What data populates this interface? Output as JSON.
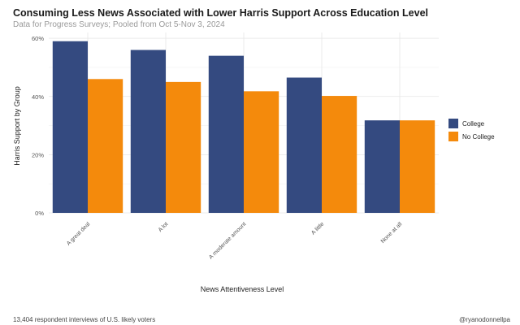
{
  "header": {
    "title": "Consuming Less News Associated with Lower Harris Support Across Education Level",
    "subtitle": "Data for Progress Surveys; Pooled from Oct 5-Nov 3, 2024"
  },
  "footer": {
    "left": "13,404 respondent interviews of U.S. likely voters",
    "right": "@ryanodonnellpa"
  },
  "colors": {
    "college": "#344a80",
    "no_college": "#f48a0c",
    "grid": "#e6e6e6"
  },
  "chart_data": {
    "type": "bar",
    "title": "Consuming Less News Associated with Lower Harris Support Across Education Level",
    "subtitle": "Data for Progress Surveys; Pooled from Oct 5-Nov 3, 2024",
    "xlabel": "News Attentiveness Level",
    "ylabel": "Harris Support by Group",
    "ylim": [
      0,
      0.62
    ],
    "yticks": [
      0,
      0.2,
      0.4,
      0.6
    ],
    "ytick_labels": [
      "0%",
      "20%",
      "40%",
      "60%"
    ],
    "categories": [
      "A great deal",
      "A lot",
      "A moderate amount",
      "A little",
      "None at all"
    ],
    "series": [
      {
        "name": "College",
        "values": [
          0.59,
          0.56,
          0.54,
          0.465,
          0.318
        ]
      },
      {
        "name": "No College",
        "values": [
          0.46,
          0.45,
          0.418,
          0.402,
          0.318
        ]
      }
    ],
    "legend_position": "right",
    "grid": true
  }
}
